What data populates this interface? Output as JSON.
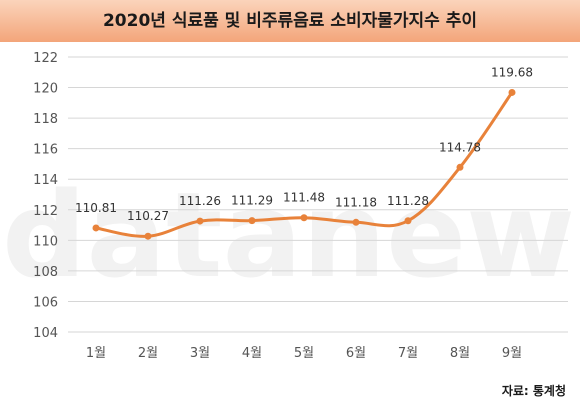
{
  "title": "2020년 식료품 및 비주류음료 소비자물가지수 추이",
  "source": "자료: 통계청",
  "watermark": "datanews",
  "colors": {
    "line": "#e8823a",
    "title_bar_top": "#fbd4bb",
    "title_bar_bottom": "#f3a57a",
    "grid": "#d6d6d6"
  },
  "chart_data": {
    "type": "line",
    "title": "2020년 식료품 및 비주류음료 소비자물가지수 추이",
    "xlabel": "",
    "ylabel": "",
    "categories": [
      "1월",
      "2월",
      "3월",
      "4월",
      "5월",
      "6월",
      "7월",
      "8월",
      "9월"
    ],
    "series": [
      {
        "values": [
          110.81,
          110.27,
          111.26,
          111.29,
          111.48,
          111.18,
          111.28,
          114.78,
          119.68
        ]
      }
    ],
    "value_labels": [
      "110.81",
      "110.27",
      "111.26",
      "111.29",
      "111.48",
      "111.18",
      "111.28",
      "114.78",
      "119.68"
    ],
    "ylim": [
      104,
      122
    ],
    "yticks": [
      104,
      106,
      108,
      110,
      112,
      114,
      116,
      118,
      120,
      122
    ],
    "grid": true,
    "legend": "none"
  }
}
